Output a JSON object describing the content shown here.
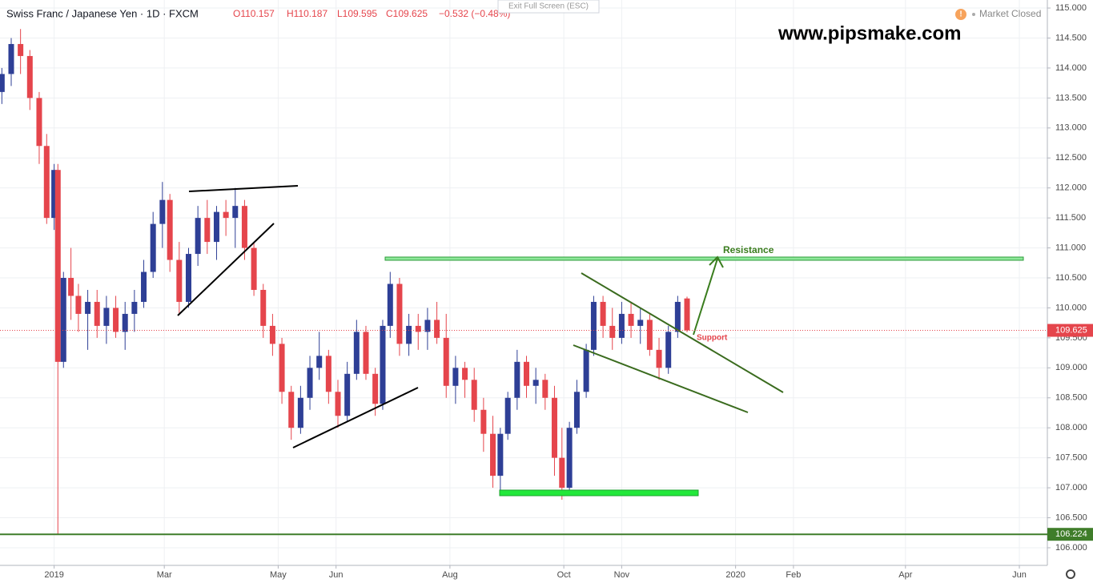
{
  "chart_data": {
    "type": "candlestick",
    "title": "Swiss Franc / Japanese Yen · 1D · FXCM",
    "info": [
      "O110.157",
      "H110.187",
      "L109.595",
      "C109.625",
      "−0.532 (−0.48%)"
    ],
    "watermark": "www.pipsmake.com",
    "exit_button": "Exit Full Screen (ESC)",
    "market_status": "Market Closed",
    "annotations": [
      "Resistance",
      "Support"
    ],
    "up_color": "#2e3f96",
    "down_color": "#e5454c",
    "x": [
      -28,
      -23,
      -18,
      -13,
      -8,
      -4,
      0,
      2,
      5,
      9,
      13,
      18,
      23,
      28,
      33,
      38,
      43,
      48,
      53,
      58,
      62,
      67,
      72,
      77,
      82,
      87,
      92,
      97,
      102,
      107,
      112,
      117,
      122,
      127,
      132,
      137,
      142,
      147,
      152,
      157,
      162,
      167,
      172,
      176,
      180,
      185,
      190,
      195,
      200,
      205,
      210,
      215,
      220,
      225,
      230,
      235,
      239,
      243,
      248,
      253,
      258,
      263,
      268,
      272,
      276,
      280,
      285,
      289,
      294,
      299,
      304,
      309,
      314,
      319,
      324,
      329,
      334,
      339
    ],
    "open": [
      113.6,
      113.9,
      114.4,
      114.2,
      113.5,
      112.7,
      111.5,
      112.3,
      109.1,
      110.5,
      110.2,
      109.9,
      110.1,
      109.7,
      110.0,
      109.6,
      109.9,
      110.1,
      110.6,
      111.4,
      111.8,
      110.8,
      110.1,
      110.9,
      111.5,
      111.1,
      111.6,
      111.5,
      111.7,
      111.0,
      110.3,
      109.7,
      109.4,
      108.6,
      108.0,
      108.5,
      109.0,
      109.2,
      108.6,
      108.2,
      108.9,
      109.6,
      108.9,
      108.4,
      109.7,
      110.4,
      109.4,
      109.7,
      109.6,
      109.8,
      109.5,
      108.7,
      109.0,
      108.8,
      108.3,
      107.9,
      107.2,
      107.9,
      108.5,
      109.1,
      108.7,
      108.8,
      108.5,
      107.5,
      107.0,
      108.0,
      108.6,
      109.3,
      110.1,
      109.7,
      109.5,
      109.9,
      109.7,
      109.8,
      109.3,
      109.0,
      109.6,
      110.157
    ],
    "high": [
      114.0,
      114.5,
      114.65,
      114.3,
      113.6,
      112.9,
      112.4,
      112.4,
      110.6,
      111.0,
      110.4,
      110.3,
      110.3,
      110.2,
      110.2,
      110.1,
      110.3,
      110.8,
      111.6,
      112.1,
      111.9,
      111.1,
      111.0,
      111.7,
      111.8,
      111.7,
      111.8,
      112.0,
      111.8,
      111.1,
      110.4,
      109.9,
      109.5,
      108.7,
      108.7,
      109.2,
      109.6,
      109.3,
      108.8,
      109.1,
      109.8,
      109.7,
      109.0,
      109.8,
      110.6,
      110.5,
      109.9,
      109.9,
      110.0,
      110.1,
      109.9,
      109.2,
      109.1,
      109.0,
      108.5,
      108.2,
      108.0,
      108.6,
      109.3,
      109.2,
      109.0,
      108.9,
      108.7,
      108.0,
      108.1,
      108.8,
      109.4,
      110.2,
      110.2,
      110.0,
      110.1,
      110.1,
      110.0,
      109.9,
      109.5,
      109.7,
      110.2,
      110.187
    ],
    "low": [
      113.4,
      113.7,
      113.9,
      113.3,
      112.4,
      111.4,
      111.3,
      106.224,
      109.0,
      109.8,
      109.6,
      109.3,
      109.5,
      109.4,
      109.5,
      109.3,
      109.6,
      110.0,
      110.5,
      111.0,
      110.6,
      109.9,
      110.0,
      110.7,
      110.9,
      110.8,
      111.2,
      111.0,
      110.8,
      110.2,
      109.5,
      109.2,
      108.4,
      107.8,
      107.9,
      108.3,
      108.8,
      108.4,
      108.0,
      108.1,
      108.8,
      108.8,
      108.2,
      108.3,
      109.5,
      109.2,
      109.2,
      109.3,
      109.3,
      109.4,
      108.5,
      108.4,
      108.5,
      108.1,
      107.6,
      107.0,
      106.9,
      107.8,
      108.3,
      108.5,
      108.4,
      108.3,
      107.2,
      106.8,
      106.9,
      107.9,
      108.5,
      109.2,
      109.5,
      109.3,
      109.4,
      109.5,
      109.4,
      109.2,
      108.8,
      108.9,
      109.5,
      109.595
    ],
    "close": [
      113.9,
      114.4,
      114.2,
      113.5,
      112.7,
      111.5,
      112.3,
      109.1,
      110.5,
      110.2,
      109.9,
      110.1,
      109.7,
      110.0,
      109.6,
      109.9,
      110.1,
      110.6,
      111.4,
      111.8,
      110.8,
      110.1,
      110.9,
      111.5,
      111.1,
      111.6,
      111.5,
      111.7,
      111.0,
      110.3,
      109.7,
      109.4,
      108.6,
      108.0,
      108.5,
      109.0,
      109.2,
      108.6,
      108.2,
      108.9,
      109.6,
      108.9,
      108.4,
      109.7,
      110.4,
      109.4,
      109.7,
      109.6,
      109.8,
      109.5,
      108.7,
      109.0,
      108.8,
      108.3,
      107.9,
      107.2,
      107.9,
      108.5,
      109.1,
      108.7,
      108.8,
      108.5,
      107.5,
      107.0,
      108.0,
      108.6,
      109.3,
      110.1,
      109.7,
      109.5,
      109.9,
      109.7,
      109.8,
      109.3,
      109.0,
      109.6,
      110.1,
      109.625
    ],
    "last_price": 109.625,
    "last_price_color": "#e5454c",
    "level": 106.224,
    "level_color": "#3f7d2a",
    "xlim": [
      -29,
      532
    ],
    "xticks": [
      {
        "value": 0,
        "label": "2019"
      },
      {
        "value": 59,
        "label": "Mar"
      },
      {
        "value": 120,
        "label": "May"
      },
      {
        "value": 151,
        "label": "Jun"
      },
      {
        "value": 212,
        "label": "Aug"
      },
      {
        "value": 273,
        "label": "Oct"
      },
      {
        "value": 304,
        "label": "Nov"
      },
      {
        "value": 365,
        "label": "2020"
      },
      {
        "value": 396,
        "label": "Feb"
      },
      {
        "value": 456,
        "label": "Apr"
      },
      {
        "value": 517,
        "label": "Jun"
      }
    ],
    "ylim": [
      105.706,
      115.134
    ],
    "yticks": [
      {
        "value": 106,
        "label": "106.000"
      },
      {
        "value": 106.5,
        "label": "106.500"
      },
      {
        "value": 107,
        "label": "107.000"
      },
      {
        "value": 107.5,
        "label": "107.500"
      },
      {
        "value": 108,
        "label": "108.000"
      },
      {
        "value": 108.5,
        "label": "108.500"
      },
      {
        "value": 109,
        "label": "109.000"
      },
      {
        "value": 109.5,
        "label": "109.500"
      },
      {
        "value": 110,
        "label": "110.000"
      },
      {
        "value": 110.5,
        "label": "110.500"
      },
      {
        "value": 111,
        "label": "111.000"
      },
      {
        "value": 111.5,
        "label": "111.500"
      },
      {
        "value": 112,
        "label": "112.000"
      },
      {
        "value": 112.5,
        "label": "112.500"
      },
      {
        "value": 113,
        "label": "113.000"
      },
      {
        "value": 113.5,
        "label": "113.500"
      },
      {
        "value": 114,
        "label": "114.000"
      },
      {
        "value": 114.5,
        "label": "114.500"
      },
      {
        "value": 115,
        "label": "115.000"
      }
    ],
    "grid": true
  }
}
